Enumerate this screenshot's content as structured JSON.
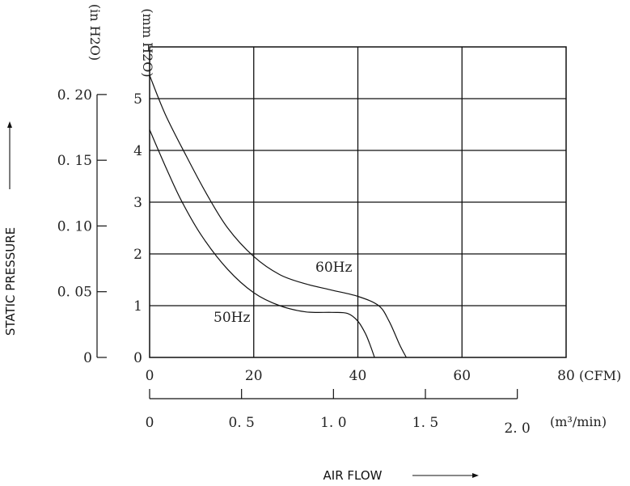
{
  "chart_data": {
    "type": "line",
    "title": "",
    "xlabel": "AIR FLOW",
    "ylabel": "STATIC PRESSURE",
    "x_unit": "(CFM)",
    "y_unit": "(mm H2O)",
    "xlim": [
      0,
      80
    ],
    "ylim": [
      0,
      5.5
    ],
    "grid": true,
    "x_ticks": [
      "0",
      "20",
      "40",
      "60",
      "80"
    ],
    "y_ticks": [
      "0",
      "1",
      "2",
      "3",
      "4",
      "5"
    ],
    "secondary_y": {
      "unit": "(in H2O)",
      "ticks": [
        "0",
        "0. 05",
        "0. 10",
        "0. 15",
        "0. 20"
      ],
      "values": [
        0,
        0.05,
        0.1,
        0.15,
        0.2
      ]
    },
    "secondary_x": {
      "unit": "(m³/min)",
      "ticks": [
        "0",
        "0. 5",
        "1. 0",
        "1. 5",
        "2. 0"
      ],
      "values": [
        0,
        0.5,
        1.0,
        1.5,
        2.0
      ]
    },
    "series": [
      {
        "name": "60Hz",
        "label": "60Hz",
        "x": [
          0,
          3,
          7,
          11,
          15,
          20,
          25,
          30,
          35,
          40,
          44,
          46,
          48,
          49.3
        ],
        "y": [
          5.45,
          4.7,
          3.9,
          3.15,
          2.5,
          1.95,
          1.6,
          1.42,
          1.3,
          1.18,
          1.0,
          0.7,
          0.25,
          0
        ]
      },
      {
        "name": "50Hz",
        "label": "50Hz",
        "x": [
          0,
          3,
          6,
          10,
          15,
          20,
          25,
          30,
          35,
          38,
          40,
          41.5,
          42.5,
          43.2
        ],
        "y": [
          4.4,
          3.7,
          3.05,
          2.35,
          1.7,
          1.25,
          1.0,
          0.88,
          0.87,
          0.85,
          0.7,
          0.45,
          0.2,
          0
        ]
      }
    ]
  }
}
